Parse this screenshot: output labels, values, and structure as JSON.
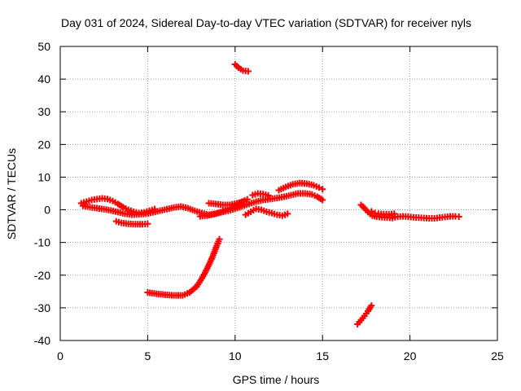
{
  "chart_data": {
    "type": "scatter",
    "title": "Day 031 of 2024, Sidereal Day-to-day VTEC variation (SDTVAR) for receiver nyls",
    "xlabel": "GPS time / hours",
    "ylabel": "SDTVAR / TECUs",
    "xlim": [
      0,
      25
    ],
    "ylim": [
      -40,
      50
    ],
    "xticks": [
      "0",
      "5",
      "10",
      "15",
      "20",
      "25"
    ],
    "yticks": [
      "-40",
      "-30",
      "-20",
      "-10",
      "0",
      "10",
      "20",
      "30",
      "40",
      "50"
    ],
    "grid": true,
    "marker": "+",
    "color": "#ff0000",
    "series": [
      {
        "name": "arc-1",
        "points": [
          [
            1.2,
            2.0
          ],
          [
            1.5,
            2.5
          ],
          [
            1.8,
            3.0
          ],
          [
            2.1,
            3.3
          ],
          [
            2.4,
            3.5
          ],
          [
            2.7,
            3.3
          ],
          [
            3.0,
            2.7
          ],
          [
            3.3,
            1.8
          ],
          [
            3.6,
            0.8
          ],
          [
            3.9,
            0.0
          ],
          [
            4.2,
            -0.6
          ],
          [
            4.5,
            -1.0
          ],
          [
            4.8,
            -0.8
          ],
          [
            5.1,
            -0.3
          ],
          [
            5.4,
            0.2
          ]
        ]
      },
      {
        "name": "arc-2",
        "points": [
          [
            1.3,
            1.2
          ],
          [
            1.7,
            0.8
          ],
          [
            2.1,
            0.5
          ],
          [
            2.5,
            0.2
          ],
          [
            2.9,
            -0.2
          ],
          [
            3.3,
            -0.7
          ],
          [
            3.7,
            -1.2
          ],
          [
            4.1,
            -1.5
          ],
          [
            4.5,
            -1.4
          ],
          [
            4.9,
            -1.2
          ],
          [
            5.3,
            -0.8
          ],
          [
            5.7,
            -0.3
          ],
          [
            6.1,
            0.2
          ],
          [
            6.5,
            0.7
          ],
          [
            6.9,
            1.0
          ],
          [
            7.3,
            0.5
          ],
          [
            7.7,
            -0.3
          ],
          [
            8.1,
            -1.0
          ],
          [
            8.5,
            -1.5
          ],
          [
            8.9,
            -1.2
          ],
          [
            9.3,
            -0.5
          ],
          [
            9.7,
            0.5
          ],
          [
            10.1,
            1.5
          ],
          [
            10.4,
            2.5
          ],
          [
            10.7,
            3.2
          ]
        ]
      },
      {
        "name": "arc-3",
        "points": [
          [
            3.2,
            -3.5
          ],
          [
            3.5,
            -4.0
          ],
          [
            3.9,
            -4.3
          ],
          [
            4.3,
            -4.4
          ],
          [
            4.7,
            -4.4
          ],
          [
            5.0,
            -4.3
          ]
        ]
      },
      {
        "name": "arc-4",
        "points": [
          [
            5.0,
            -25.3
          ],
          [
            5.5,
            -25.7
          ],
          [
            6.0,
            -26.0
          ],
          [
            6.5,
            -26.2
          ],
          [
            7.0,
            -26.2
          ],
          [
            7.4,
            -25.3
          ],
          [
            7.8,
            -23.5
          ],
          [
            8.1,
            -21.0
          ],
          [
            8.4,
            -18.0
          ],
          [
            8.7,
            -14.5
          ],
          [
            8.95,
            -11.0
          ],
          [
            9.1,
            -9.0
          ]
        ]
      },
      {
        "name": "arc-5",
        "points": [
          [
            8.0,
            -2.0
          ],
          [
            8.4,
            -1.8
          ],
          [
            8.8,
            -1.3
          ],
          [
            9.2,
            -0.8
          ],
          [
            9.6,
            -0.3
          ],
          [
            10.0,
            0.3
          ],
          [
            10.4,
            1.0
          ],
          [
            10.8,
            1.8
          ],
          [
            11.2,
            2.5
          ],
          [
            11.6,
            3.0
          ],
          [
            12.0,
            3.3
          ],
          [
            12.4,
            3.6
          ],
          [
            12.8,
            4.0
          ],
          [
            13.2,
            4.5
          ],
          [
            13.6,
            5.0
          ],
          [
            14.0,
            5.0
          ],
          [
            14.4,
            4.7
          ],
          [
            14.7,
            4.0
          ],
          [
            15.0,
            3.0
          ]
        ]
      },
      {
        "name": "arc-6",
        "points": [
          [
            8.5,
            2.0
          ],
          [
            8.9,
            1.8
          ],
          [
            9.3,
            1.5
          ],
          [
            9.7,
            1.5
          ],
          [
            10.1,
            2.0
          ],
          [
            10.5,
            2.5
          ]
        ]
      },
      {
        "name": "arc-7",
        "points": [
          [
            10.0,
            44.5
          ],
          [
            10.2,
            43.5
          ],
          [
            10.45,
            42.6
          ],
          [
            10.75,
            42.4
          ]
        ]
      },
      {
        "name": "arc-8",
        "points": [
          [
            10.6,
            -1.5
          ],
          [
            10.9,
            -0.6
          ],
          [
            11.2,
            0.3
          ],
          [
            11.5,
            0.0
          ],
          [
            11.8,
            -0.6
          ],
          [
            12.1,
            -1.0
          ],
          [
            12.4,
            -1.5
          ],
          [
            12.7,
            -1.8
          ],
          [
            13.0,
            -1.2
          ]
        ]
      },
      {
        "name": "arc-9",
        "points": [
          [
            11.0,
            4.5
          ],
          [
            11.3,
            5.0
          ],
          [
            11.6,
            4.8
          ],
          [
            11.9,
            4.4
          ]
        ]
      },
      {
        "name": "arc-10",
        "points": [
          [
            12.5,
            6.0
          ],
          [
            12.9,
            7.0
          ],
          [
            13.3,
            7.8
          ],
          [
            13.7,
            8.2
          ],
          [
            14.1,
            8.0
          ],
          [
            14.5,
            7.5
          ],
          [
            14.8,
            6.8
          ],
          [
            15.0,
            6.3
          ]
        ]
      },
      {
        "name": "arc-11",
        "points": [
          [
            17.2,
            1.5
          ],
          [
            17.4,
            0.5
          ],
          [
            17.6,
            -0.7
          ],
          [
            17.85,
            -1.8
          ],
          [
            18.1,
            -2.1
          ],
          [
            18.4,
            -2.3
          ],
          [
            18.7,
            -2.4
          ],
          [
            19.0,
            -2.5
          ],
          [
            19.3,
            -2.1
          ],
          [
            19.6,
            -2.0
          ],
          [
            19.9,
            -2.1
          ],
          [
            20.2,
            -2.3
          ],
          [
            20.5,
            -2.4
          ],
          [
            20.8,
            -2.5
          ],
          [
            21.1,
            -2.6
          ],
          [
            21.4,
            -2.6
          ],
          [
            21.7,
            -2.4
          ],
          [
            22.0,
            -2.2
          ],
          [
            22.3,
            -2.0
          ],
          [
            22.6,
            -2.0
          ],
          [
            22.8,
            -2.1
          ]
        ]
      },
      {
        "name": "arc-12",
        "points": [
          [
            17.8,
            -0.5
          ],
          [
            18.0,
            -1.0
          ],
          [
            18.2,
            -1.2
          ],
          [
            18.5,
            -1.3
          ],
          [
            18.8,
            -1.4
          ],
          [
            19.1,
            -1.2
          ]
        ]
      },
      {
        "name": "arc-13",
        "points": [
          [
            17.0,
            -35.0
          ],
          [
            17.2,
            -33.8
          ],
          [
            17.4,
            -32.5
          ],
          [
            17.6,
            -31.0
          ],
          [
            17.8,
            -29.3
          ]
        ]
      }
    ]
  }
}
